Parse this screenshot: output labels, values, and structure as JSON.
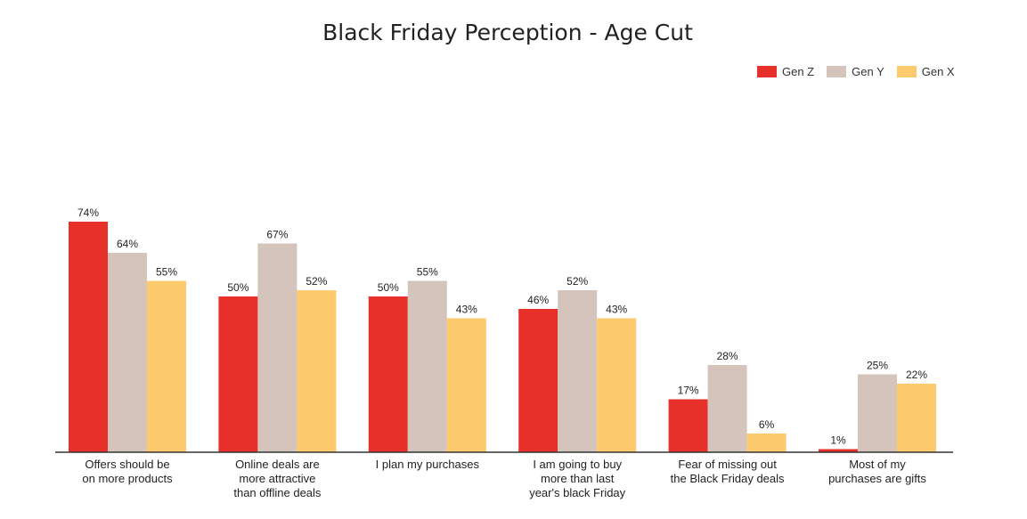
{
  "chart_data": {
    "type": "bar",
    "title": "Black Friday Perception - Age Cut",
    "categories": [
      [
        "Offers should be",
        "on more products"
      ],
      [
        "Online deals are",
        "more attractive",
        "than offline deals"
      ],
      [
        "I plan my purchases"
      ],
      [
        "I am going to buy",
        "more than last",
        "year's black Friday"
      ],
      [
        "Fear of missing out",
        "the Black Friday deals"
      ],
      [
        "Most of my",
        "purchases are gifts"
      ]
    ],
    "series": [
      {
        "name": "Gen Z",
        "color": "#e8302a",
        "values": [
          74,
          50,
          50,
          46,
          17,
          1
        ],
        "labels": [
          "74%",
          "50%",
          "50%",
          "46%",
          "17%",
          "1%"
        ]
      },
      {
        "name": "Gen Y",
        "color": "#d5c4bb",
        "values": [
          64,
          67,
          55,
          52,
          28,
          25
        ],
        "labels": [
          "64%",
          "67%",
          "55%",
          "52%",
          "28%",
          "25%"
        ]
      },
      {
        "name": "Gen X",
        "color": "#fdcb6e",
        "values": [
          55,
          52,
          43,
          43,
          6,
          22
        ],
        "labels": [
          "55%",
          "52%",
          "43%",
          "43%",
          "6%",
          "22%"
        ]
      }
    ],
    "ylim": [
      0,
      100
    ],
    "legend_position": "top-right",
    "grid": false
  }
}
